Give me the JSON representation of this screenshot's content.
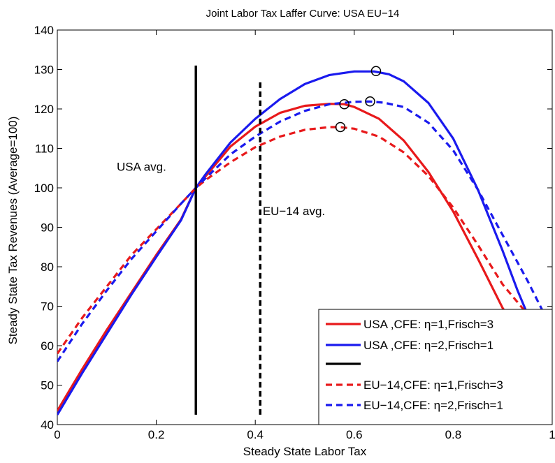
{
  "chart_data": {
    "type": "line",
    "title": "Joint Labor Tax Laffer Curve: USA  EU−14",
    "xlabel": "Steady State Labor Tax",
    "ylabel": "Steady State Tax Revenues (Average=100)",
    "xlim": [
      0,
      1
    ],
    "ylim": [
      40,
      140
    ],
    "xticks": [
      0,
      0.2,
      0.4,
      0.6,
      0.8,
      1
    ],
    "xtick_labels": [
      "0",
      "0.2",
      "0.4",
      "0.6",
      "0.8",
      "1"
    ],
    "yticks": [
      40,
      50,
      60,
      70,
      80,
      90,
      100,
      110,
      120,
      130,
      140
    ],
    "ytick_labels": [
      "40",
      "50",
      "60",
      "70",
      "80",
      "90",
      "100",
      "110",
      "120",
      "130",
      "140"
    ],
    "grid": false,
    "legend_position": "bottom-right",
    "series": [
      {
        "name": "USA   ,CFE: η=1,Frisch=3",
        "color": "#e8191b",
        "dash": "solid",
        "x": [
          0,
          0.05,
          0.1,
          0.15,
          0.2,
          0.25,
          0.28,
          0.3,
          0.35,
          0.4,
          0.45,
          0.5,
          0.55,
          0.58,
          0.6,
          0.65,
          0.7,
          0.75,
          0.8,
          0.85,
          0.9,
          0.95,
          0.98
        ],
        "y": [
          43.5,
          54,
          64,
          73.5,
          83,
          92,
          100,
          103,
          110.5,
          115.5,
          119,
          120.8,
          121.3,
          121.2,
          120.5,
          117.5,
          112,
          104,
          94,
          82,
          69.5,
          60,
          54.5
        ]
      },
      {
        "name": "USA   ,CFE: η=2,Frisch=1",
        "color": "#1a1aee",
        "dash": "solid",
        "x": [
          0,
          0.05,
          0.1,
          0.15,
          0.2,
          0.25,
          0.28,
          0.3,
          0.35,
          0.4,
          0.45,
          0.5,
          0.55,
          0.6,
          0.64,
          0.67,
          0.7,
          0.75,
          0.8,
          0.85,
          0.9,
          0.93,
          0.96,
          0.98
        ],
        "y": [
          42.5,
          53,
          63,
          73,
          82.5,
          91.8,
          100,
          103.5,
          111.5,
          117.5,
          122.5,
          126.3,
          128.6,
          129.5,
          129.5,
          128.8,
          127,
          121.5,
          112.5,
          99.5,
          84,
          74,
          65,
          60
        ]
      },
      {
        "name": "",
        "color": "#000000",
        "dash": "solid",
        "x": [],
        "y": []
      },
      {
        "name": "EU−14,CFE: η=1,Frisch=3",
        "color": "#e8191b",
        "dash": "dashed",
        "x": [
          0,
          0.05,
          0.1,
          0.15,
          0.2,
          0.25,
          0.28,
          0.3,
          0.35,
          0.4,
          0.45,
          0.5,
          0.55,
          0.57,
          0.6,
          0.65,
          0.7,
          0.75,
          0.8,
          0.85,
          0.9,
          0.95,
          0.98
        ],
        "y": [
          58,
          67,
          75,
          83,
          89.5,
          96,
          100,
          102,
          106.5,
          110.3,
          113,
          114.7,
          115.4,
          115.4,
          115,
          113,
          109,
          103,
          95,
          85.5,
          75.5,
          68,
          64
        ]
      },
      {
        "name": "EU−14,CFE: η=2,Frisch=1",
        "color": "#1a1aee",
        "dash": "dashed",
        "x": [
          0,
          0.05,
          0.1,
          0.15,
          0.2,
          0.25,
          0.28,
          0.3,
          0.35,
          0.4,
          0.45,
          0.5,
          0.55,
          0.6,
          0.63,
          0.66,
          0.7,
          0.75,
          0.8,
          0.85,
          0.9,
          0.95,
          0.98
        ],
        "y": [
          56,
          65.5,
          74,
          82,
          89,
          96,
          100,
          102.5,
          108.5,
          113,
          116.8,
          119.5,
          121.2,
          121.8,
          121.9,
          121.6,
          120.5,
          116.5,
          109.5,
          99.5,
          88,
          76.5,
          69
        ]
      }
    ],
    "markers": [
      {
        "x": 0.58,
        "y": 121.2
      },
      {
        "x": 0.644,
        "y": 129.6
      },
      {
        "x": 0.632,
        "y": 121.9
      },
      {
        "x": 0.572,
        "y": 115.4
      }
    ],
    "vlines": [
      {
        "x": 0.28,
        "y0": 42.5,
        "y1": 131,
        "color": "#000000",
        "dash": "solid"
      },
      {
        "x": 0.41,
        "y0": 42.5,
        "y1": 127.5,
        "color": "#000000",
        "dash": "dashed"
      }
    ],
    "annotations": [
      {
        "text": "USA   avg.",
        "x": 0.12,
        "y": 104.3
      },
      {
        "text": "EU−14 avg.",
        "x": 0.415,
        "y": 93.1
      }
    ]
  }
}
